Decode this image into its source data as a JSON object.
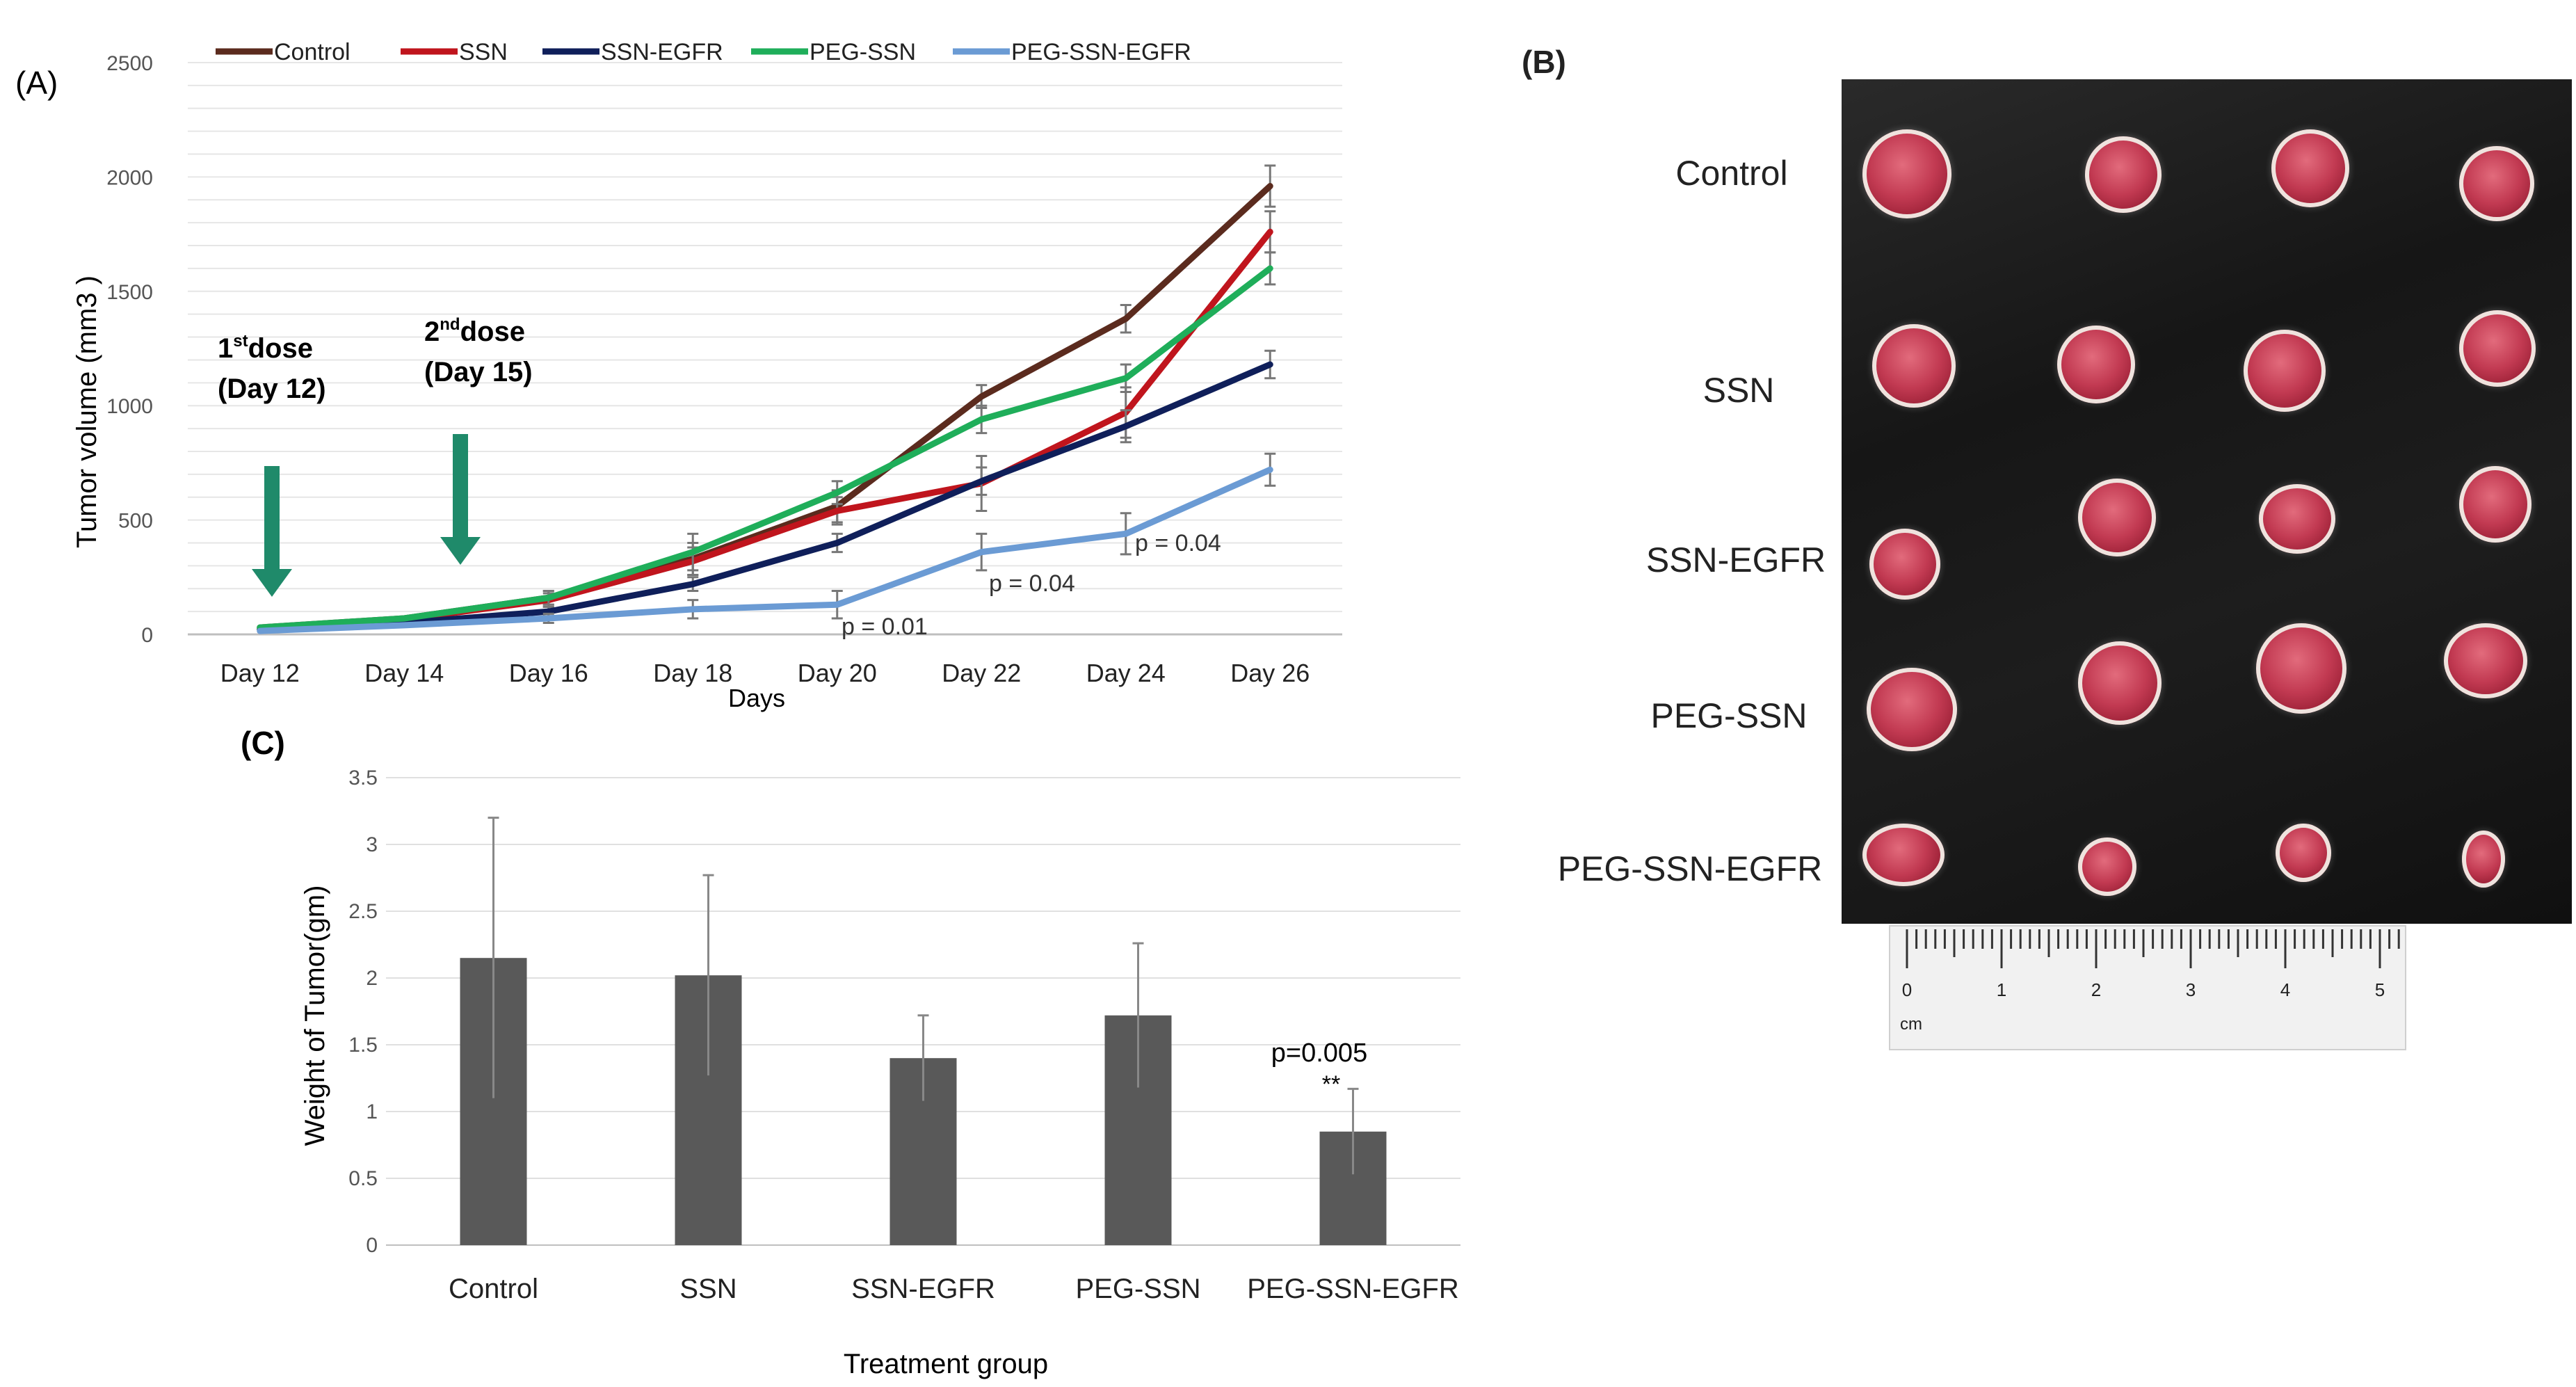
{
  "panels": {
    "A": {
      "label": "(A)"
    },
    "B": {
      "label": "(B)"
    },
    "C": {
      "label": "(C)"
    }
  },
  "photo": {
    "row_labels": [
      "Control",
      "SSN",
      "SSN-EGFR",
      "PEG-SSN",
      "PEG-SSN-EGFR"
    ],
    "ruler_ticks": [
      "0",
      "1",
      "2",
      "3",
      "4",
      "5"
    ],
    "ruler_unit": "cm"
  },
  "chart_data": [
    {
      "type": "line",
      "title": "",
      "xlabel": "Days",
      "ylabel": "Tumor volume (mm3 )",
      "categories": [
        "Day 12",
        "Day 14",
        "Day 16",
        "Day 18",
        "Day 20",
        "Day 22",
        "Day 24",
        "Day 26"
      ],
      "ylim": [
        0,
        2500
      ],
      "yticks": [
        0,
        500,
        1000,
        1500,
        2000,
        2500
      ],
      "grid": true,
      "legend_position": "top",
      "series": [
        {
          "name": "Control",
          "color": "#5b2b1e",
          "values": [
            30,
            70,
            160,
            330,
            560,
            1040,
            1380,
            1960
          ],
          "errors": [
            5,
            10,
            30,
            70,
            70,
            50,
            60,
            90
          ]
        },
        {
          "name": "SSN",
          "color": "#c0151d",
          "values": [
            25,
            65,
            150,
            320,
            540,
            660,
            970,
            1760
          ],
          "errors": [
            5,
            10,
            30,
            60,
            60,
            120,
            110,
            90
          ]
        },
        {
          "name": "SSN-EGFR",
          "color": "#0f1f5a",
          "values": [
            20,
            50,
            100,
            220,
            400,
            670,
            910,
            1180
          ],
          "errors": [
            5,
            8,
            20,
            30,
            40,
            60,
            70,
            60
          ]
        },
        {
          "name": "PEG-SSN",
          "color": "#1fae5a",
          "values": [
            30,
            70,
            160,
            360,
            620,
            940,
            1120,
            1600
          ],
          "errors": [
            5,
            10,
            30,
            80,
            50,
            60,
            60,
            70
          ]
        },
        {
          "name": "PEG-SSN-EGFR",
          "color": "#6b9bd4",
          "values": [
            15,
            40,
            70,
            110,
            130,
            360,
            440,
            720
          ],
          "errors": [
            5,
            8,
            20,
            40,
            60,
            80,
            90,
            70
          ]
        }
      ],
      "annotations": {
        "dose1": {
          "line1_main": "1",
          "line1_sup": "st",
          "line1_rest": "dose",
          "line2": "(Day 12)"
        },
        "dose2": {
          "line1_main": "2",
          "line1_sup": "nd",
          "line1_rest": "dose",
          "line2": "(Day 15)"
        },
        "pvalues": [
          "p = 0.01",
          "p = 0.04",
          "p = 0.04"
        ]
      }
    },
    {
      "type": "bar",
      "title": "",
      "xlabel": "Treatment group",
      "ylabel": "Weight of Tumor(gm)",
      "categories": [
        "Control",
        "SSN",
        "SSN-EGFR",
        "PEG-SSN",
        "PEG-SSN-EGFR"
      ],
      "values": [
        2.15,
        2.02,
        1.4,
        1.72,
        0.85
      ],
      "errors": [
        1.05,
        0.75,
        0.32,
        0.54,
        0.32
      ],
      "ylim": [
        0,
        3.5
      ],
      "yticks": [
        "0",
        "0.5",
        "1",
        "1.5",
        "2",
        "2.5",
        "3",
        "3.5"
      ],
      "bar_color": "#595959",
      "grid": true,
      "annotations": {
        "pvalue": "p=0.005",
        "stars": "**"
      }
    }
  ]
}
